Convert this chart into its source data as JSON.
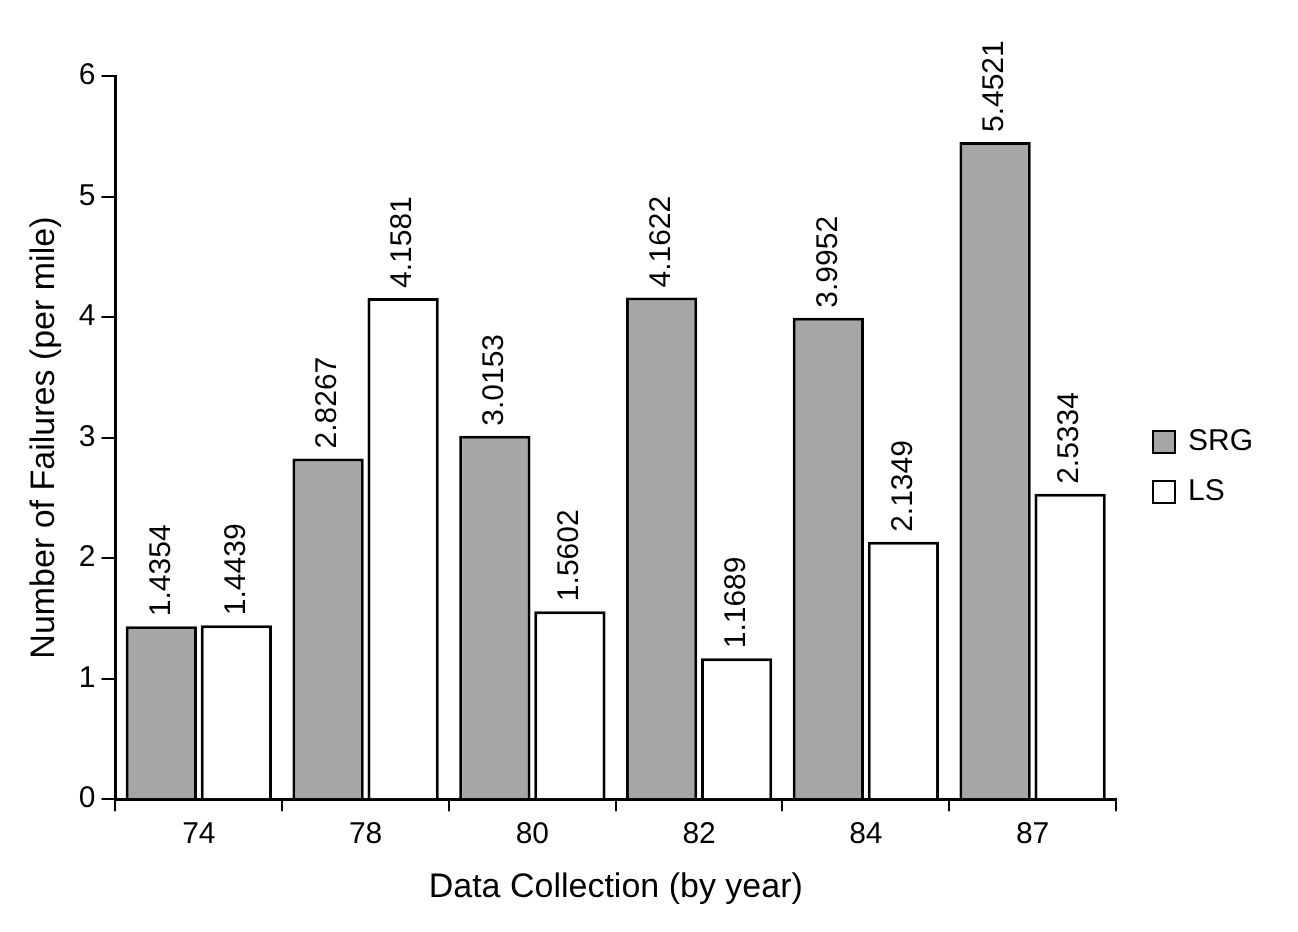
{
  "chart_data": {
    "type": "bar",
    "xlabel": "Data Collection (by year)",
    "ylabel": "Number of Failures (per mile)",
    "categories": [
      "74",
      "78",
      "80",
      "82",
      "84",
      "87"
    ],
    "series": [
      {
        "name": "SRG",
        "color": "#a6a6a6",
        "values": [
          1.4354,
          2.8267,
          3.0153,
          4.1622,
          3.9952,
          5.4521
        ]
      },
      {
        "name": "LS",
        "color": "#ffffff",
        "values": [
          1.4439,
          4.1581,
          1.5602,
          1.1689,
          2.1349,
          2.5334
        ]
      }
    ],
    "ylim": [
      0,
      6
    ],
    "yticks": [
      0,
      1,
      2,
      3,
      4,
      5,
      6
    ],
    "grid": false,
    "legend": "right",
    "data_labels": true
  }
}
